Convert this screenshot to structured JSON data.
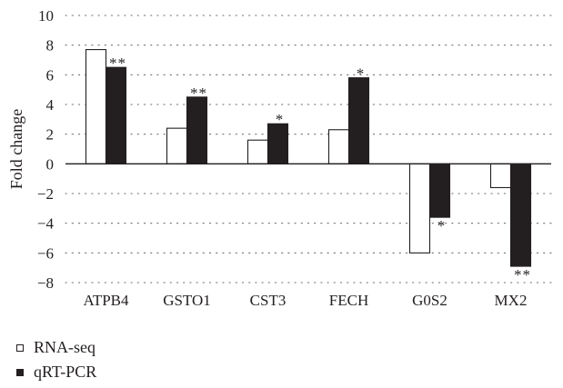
{
  "chart_data": {
    "type": "bar",
    "categories": [
      "ATPB4",
      "GSTO1",
      "CST3",
      "FECH",
      "G0S2",
      "MX2"
    ],
    "series": [
      {
        "name": "RNA-seq",
        "values": [
          7.7,
          2.4,
          1.6,
          2.3,
          -6.0,
          -1.6
        ],
        "color": "#ffffff"
      },
      {
        "name": "qRT-PCR",
        "values": [
          6.5,
          4.5,
          2.7,
          5.8,
          -3.6,
          -6.9
        ],
        "color": "#231f20"
      }
    ],
    "significance": [
      "**",
      "**",
      "*",
      "*",
      "*",
      "**"
    ],
    "ylabel": "Fold change",
    "xlabel": "",
    "ylim": [
      -8,
      10
    ],
    "yticks": [
      10,
      8,
      6,
      4,
      2,
      0,
      -2,
      -4,
      -6,
      -8
    ],
    "ytick_labels": [
      "10",
      "8",
      "6",
      "4",
      "2",
      "0",
      "−2",
      "−4",
      "−6",
      "−8"
    ],
    "grid": "horizontal dotted",
    "legend_position": "bottom-left"
  },
  "legend": {
    "items": [
      {
        "label": "RNA-seq",
        "fill": "#ffffff"
      },
      {
        "label": "qRT-PCR",
        "fill": "#231f20"
      }
    ]
  }
}
